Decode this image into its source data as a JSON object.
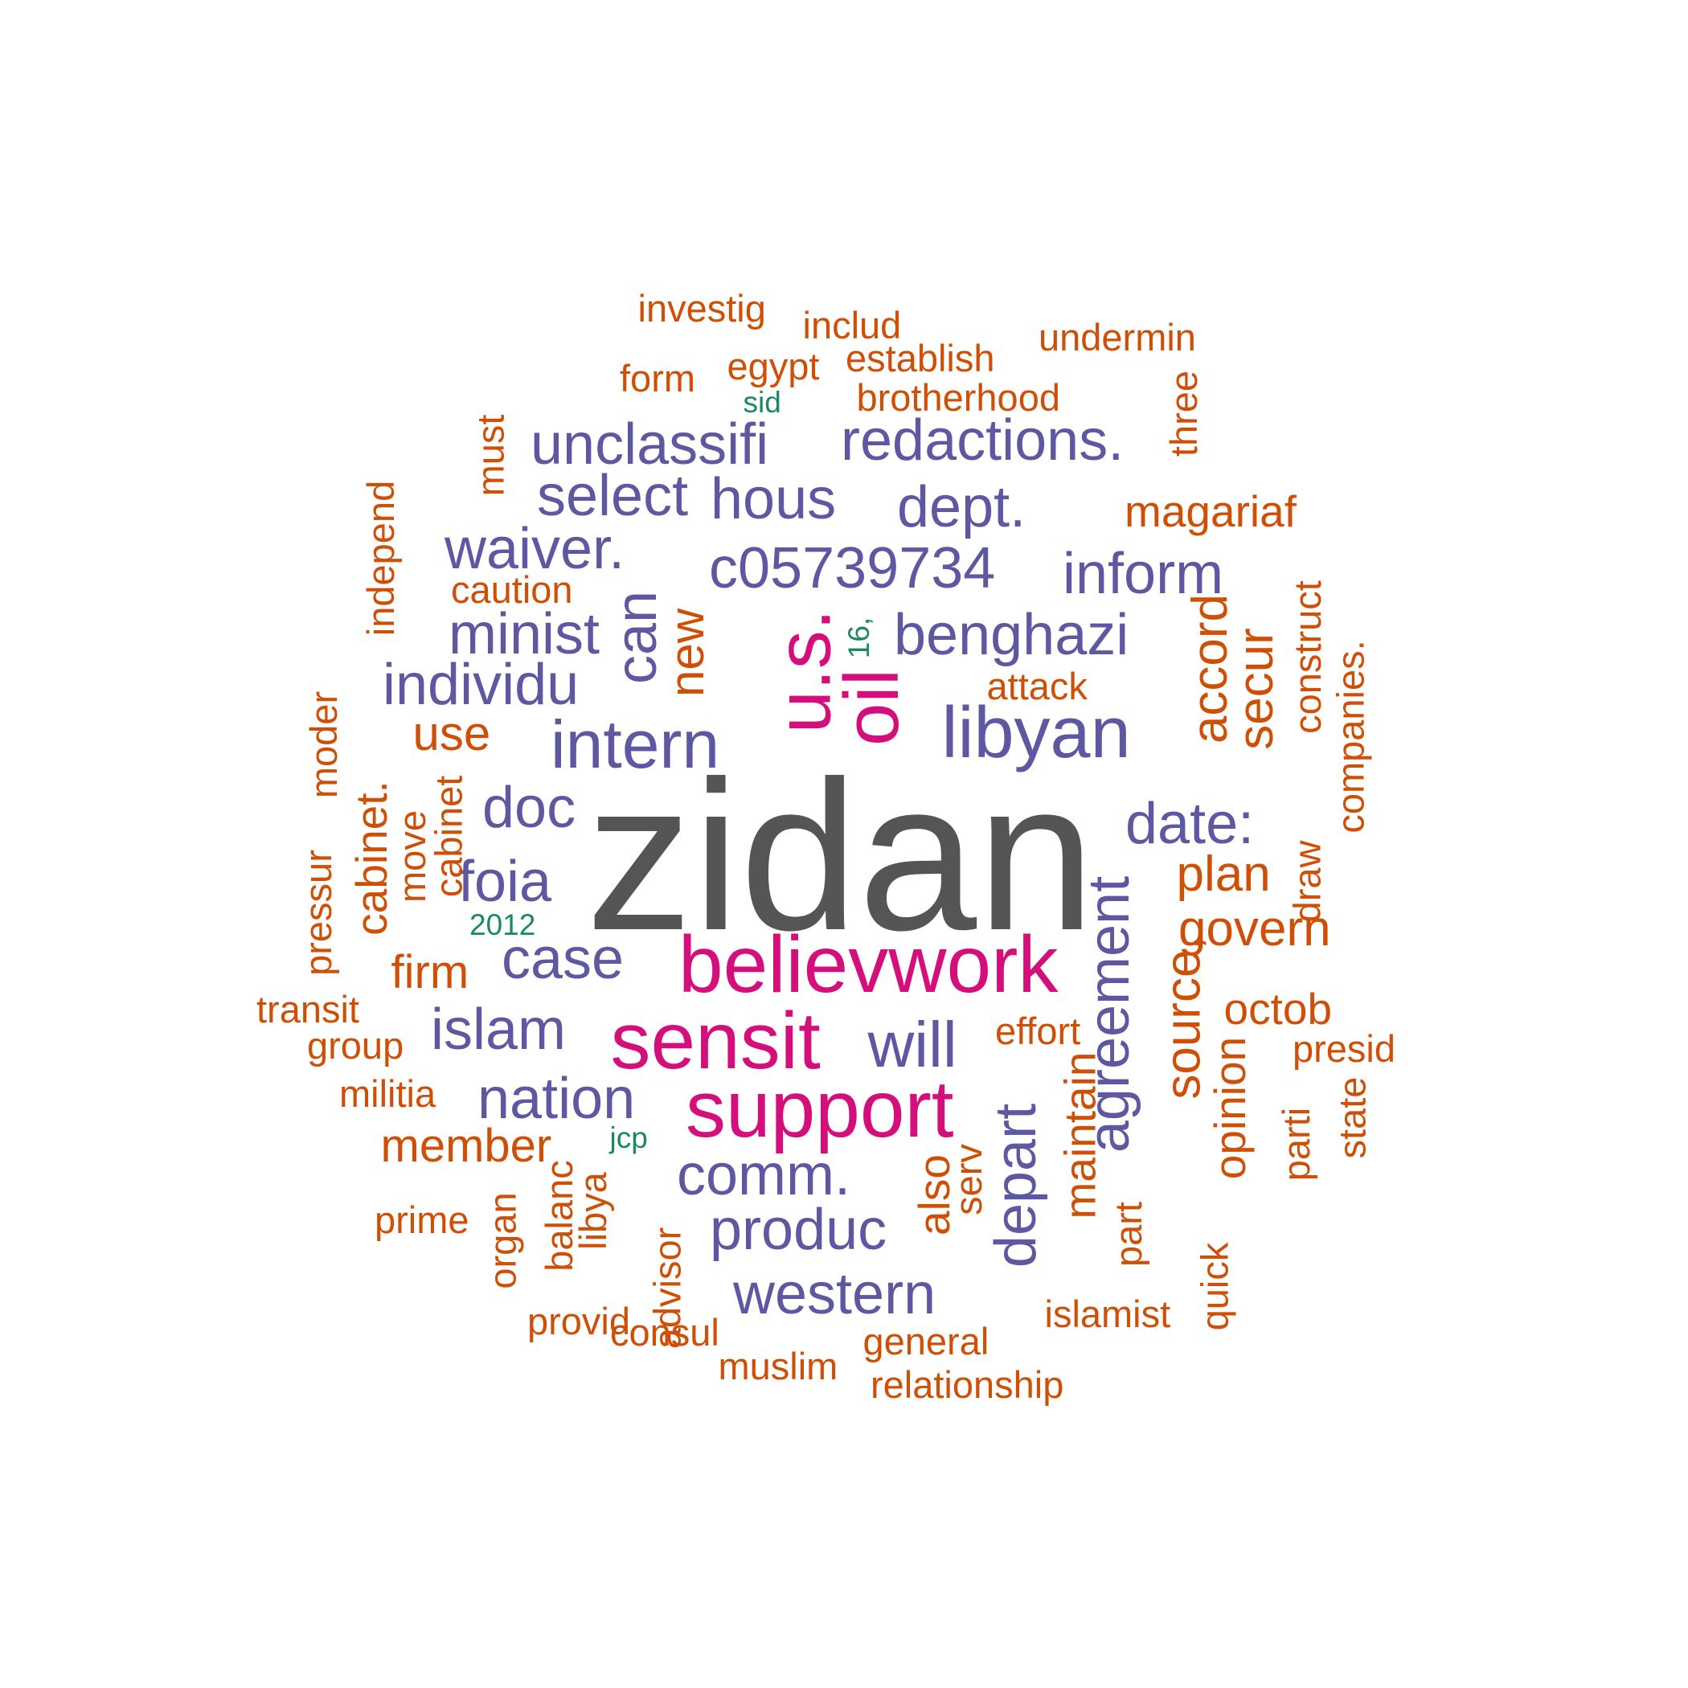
{
  "colors": {
    "top": "#555555",
    "high": "#d40e7a",
    "mid": "#5e58a3",
    "low": "#cf4f06",
    "rare": "#1a8a63"
  },
  "words": [
    {
      "text": "zidan",
      "tier": "top"
    },
    {
      "text": "u.s.",
      "tier": "high"
    },
    {
      "text": "oil",
      "tier": "high"
    },
    {
      "text": "believwork",
      "tier": "high"
    },
    {
      "text": "sensit",
      "tier": "high"
    },
    {
      "text": "support",
      "tier": "high"
    },
    {
      "text": "unclassifi",
      "tier": "mid"
    },
    {
      "text": "redactions.",
      "tier": "mid"
    },
    {
      "text": "select",
      "tier": "mid"
    },
    {
      "text": "hous",
      "tier": "mid"
    },
    {
      "text": "dept.",
      "tier": "mid"
    },
    {
      "text": "waiver.",
      "tier": "mid"
    },
    {
      "text": "c05739734",
      "tier": "mid"
    },
    {
      "text": "inform",
      "tier": "mid"
    },
    {
      "text": "minist",
      "tier": "mid"
    },
    {
      "text": "benghazi",
      "tier": "mid"
    },
    {
      "text": "individu",
      "tier": "mid"
    },
    {
      "text": "intern",
      "tier": "mid"
    },
    {
      "text": "libyan",
      "tier": "mid"
    },
    {
      "text": "doc",
      "tier": "mid"
    },
    {
      "text": "date:",
      "tier": "mid"
    },
    {
      "text": "foia",
      "tier": "mid"
    },
    {
      "text": "case",
      "tier": "mid"
    },
    {
      "text": "islam",
      "tier": "mid"
    },
    {
      "text": "will",
      "tier": "mid"
    },
    {
      "text": "nation",
      "tier": "mid"
    },
    {
      "text": "comm.",
      "tier": "mid"
    },
    {
      "text": "produc",
      "tier": "mid"
    },
    {
      "text": "western",
      "tier": "mid"
    },
    {
      "text": "depart",
      "tier": "mid"
    },
    {
      "text": "agreement",
      "tier": "mid"
    },
    {
      "text": "can",
      "tier": "mid"
    },
    {
      "text": "investig",
      "tier": "low"
    },
    {
      "text": "includ",
      "tier": "low"
    },
    {
      "text": "undermin",
      "tier": "low"
    },
    {
      "text": "egypt",
      "tier": "low"
    },
    {
      "text": "establish",
      "tier": "low"
    },
    {
      "text": "form",
      "tier": "low"
    },
    {
      "text": "brotherhood",
      "tier": "low"
    },
    {
      "text": "three",
      "tier": "low"
    },
    {
      "text": "must",
      "tier": "low"
    },
    {
      "text": "magariaf",
      "tier": "low"
    },
    {
      "text": "independ",
      "tier": "low"
    },
    {
      "text": "caution",
      "tier": "low"
    },
    {
      "text": "new",
      "tier": "low"
    },
    {
      "text": "construct",
      "tier": "low"
    },
    {
      "text": "accord",
      "tier": "low"
    },
    {
      "text": "secur",
      "tier": "low"
    },
    {
      "text": "attack",
      "tier": "low"
    },
    {
      "text": "companies.",
      "tier": "low"
    },
    {
      "text": "moder",
      "tier": "low"
    },
    {
      "text": "use",
      "tier": "low"
    },
    {
      "text": "cabinet.",
      "tier": "low"
    },
    {
      "text": "cabinet",
      "tier": "low"
    },
    {
      "text": "move",
      "tier": "low"
    },
    {
      "text": "draw",
      "tier": "low"
    },
    {
      "text": "plan",
      "tier": "low"
    },
    {
      "text": "pressur",
      "tier": "low"
    },
    {
      "text": "govern",
      "tier": "low"
    },
    {
      "text": "firm",
      "tier": "low"
    },
    {
      "text": "source,",
      "tier": "low"
    },
    {
      "text": "octob",
      "tier": "low"
    },
    {
      "text": "transit",
      "tier": "low"
    },
    {
      "text": "effort",
      "tier": "low"
    },
    {
      "text": "group",
      "tier": "low"
    },
    {
      "text": "presid",
      "tier": "low"
    },
    {
      "text": "militia",
      "tier": "low"
    },
    {
      "text": "opinion",
      "tier": "low"
    },
    {
      "text": "maintain",
      "tier": "low"
    },
    {
      "text": "state",
      "tier": "low"
    },
    {
      "text": "parti",
      "tier": "low"
    },
    {
      "text": "member",
      "tier": "low"
    },
    {
      "text": "also",
      "tier": "low"
    },
    {
      "text": "serv",
      "tier": "low"
    },
    {
      "text": "part",
      "tier": "low"
    },
    {
      "text": "prime",
      "tier": "low"
    },
    {
      "text": "organ",
      "tier": "low"
    },
    {
      "text": "balanc",
      "tier": "low"
    },
    {
      "text": "libya",
      "tier": "low"
    },
    {
      "text": "advisor",
      "tier": "low"
    },
    {
      "text": "quick",
      "tier": "low"
    },
    {
      "text": "islamist",
      "tier": "low"
    },
    {
      "text": "provid",
      "tier": "low"
    },
    {
      "text": "consul",
      "tier": "low"
    },
    {
      "text": "general",
      "tier": "low"
    },
    {
      "text": "muslim",
      "tier": "low"
    },
    {
      "text": "relationship",
      "tier": "low"
    },
    {
      "text": "sid",
      "tier": "rare"
    },
    {
      "text": "16,",
      "tier": "rare"
    },
    {
      "text": "2012",
      "tier": "rare"
    },
    {
      "text": "jcp",
      "tier": "rare"
    }
  ]
}
